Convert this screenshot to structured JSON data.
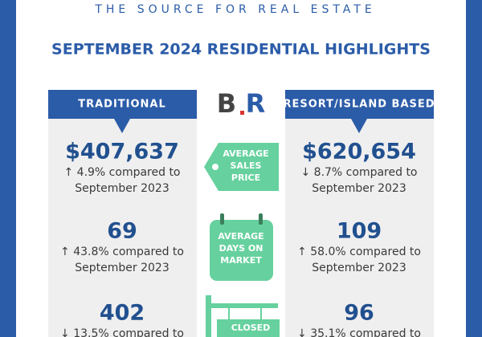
{
  "header": {
    "tagline": "THE SOURCE FOR REAL ESTATE",
    "title": "SEPTEMBER 2024 RESIDENTIAL HIGHLIGHTS"
  },
  "logo": [
    "B",
    "R"
  ],
  "columns": [
    {
      "heading": "TRADITIONAL",
      "stats": [
        {
          "value": "$407,637",
          "change": "↑ 4.9% compared to",
          "period": "September 2023"
        },
        {
          "value": "69",
          "change": "↑ 43.8% compared to",
          "period": "September 2023"
        },
        {
          "value": "402",
          "change": "↓ 13.5% compared to"
        }
      ]
    },
    {
      "heading": "RESORT/ISLAND BASED",
      "stats": [
        {
          "value": "$620,654",
          "change": "↓ 8.7% compared to",
          "period": "September 2023"
        },
        {
          "value": "109",
          "change": "↑ 58.0% compared to",
          "period": "September 2023"
        },
        {
          "value": "96",
          "change": "↓ 35.1% compared to"
        }
      ]
    }
  ],
  "metrics": [
    {
      "lines": [
        "AVERAGE",
        "SALES",
        "PRICE"
      ]
    },
    {
      "lines": [
        "AVERAGE",
        "DAYS ON",
        "MARKET"
      ]
    },
    {
      "lines": [
        "CLOSED"
      ]
    }
  ]
}
